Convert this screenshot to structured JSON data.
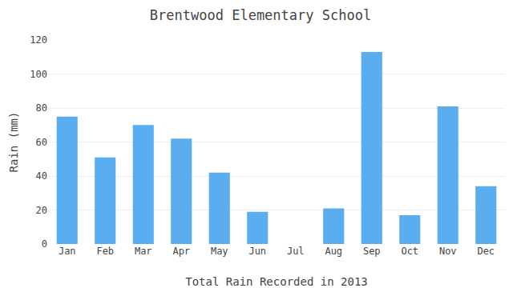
{
  "chart_data": {
    "type": "bar",
    "title": "Brentwood Elementary School",
    "xlabel": "Total Rain Recorded in 2013",
    "ylabel": "Rain (mm)",
    "categories": [
      "Jan",
      "Feb",
      "Mar",
      "Apr",
      "May",
      "Jun",
      "Jul",
      "Aug",
      "Sep",
      "Oct",
      "Nov",
      "Dec"
    ],
    "values": [
      75,
      51,
      70,
      62,
      42,
      19,
      0,
      21,
      113,
      17,
      81,
      34
    ],
    "color": "#5aaef0",
    "ylim": [
      0,
      120
    ],
    "yticks": [
      0,
      20,
      40,
      60,
      80,
      100,
      120
    ],
    "grid": true
  }
}
